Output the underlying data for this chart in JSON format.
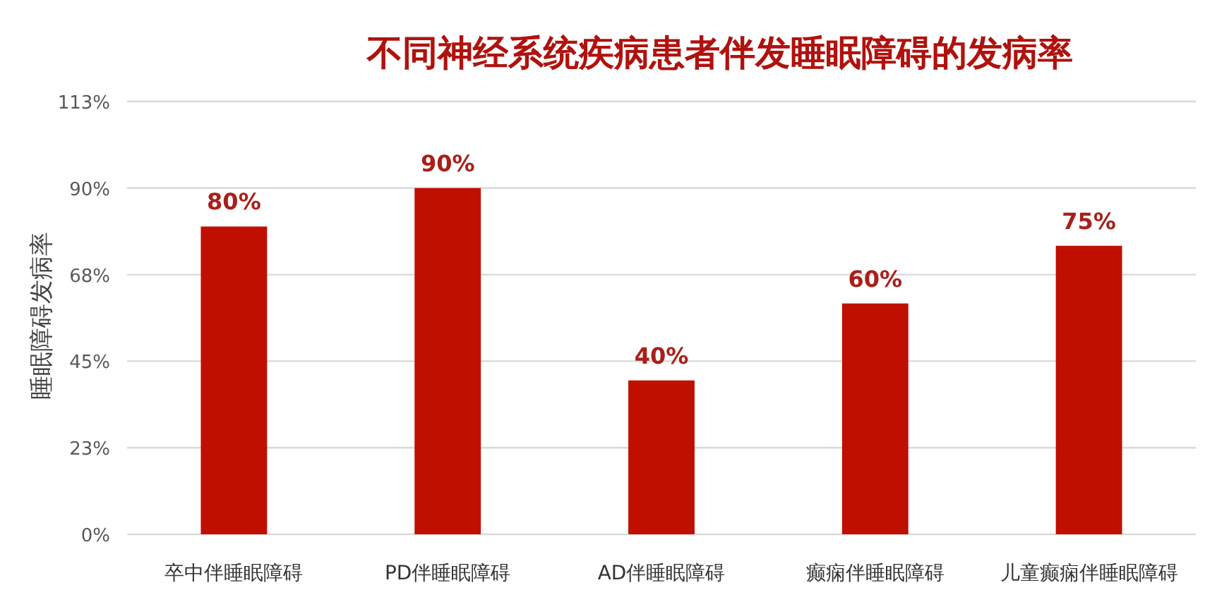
{
  "chart_data": {
    "type": "bar",
    "title": "不同神经系统疾病患者伴发睡眠障碍的发病率",
    "ylabel": "睡眠障碍发病率",
    "categories": [
      "卒中伴睡眠障碍",
      "PD伴睡眠障碍",
      "AD伴睡眠障碍",
      "癫痫伴睡眠障碍",
      "儿童癫痫伴睡眠障碍"
    ],
    "values": [
      80,
      90,
      40,
      60,
      75
    ],
    "value_labels": [
      "80%",
      "90%",
      "40%",
      "60%",
      "75%"
    ],
    "color": "#c00f00",
    "ylim": [
      0,
      112.5
    ],
    "yticks": [
      {
        "value": 0,
        "label": "0%"
      },
      {
        "value": 22.5,
        "label": "23%"
      },
      {
        "value": 45,
        "label": "45%"
      },
      {
        "value": 67.5,
        "label": "68%"
      },
      {
        "value": 90,
        "label": "90%"
      },
      {
        "value": 112.5,
        "label": "113%"
      }
    ],
    "grid": "y"
  }
}
